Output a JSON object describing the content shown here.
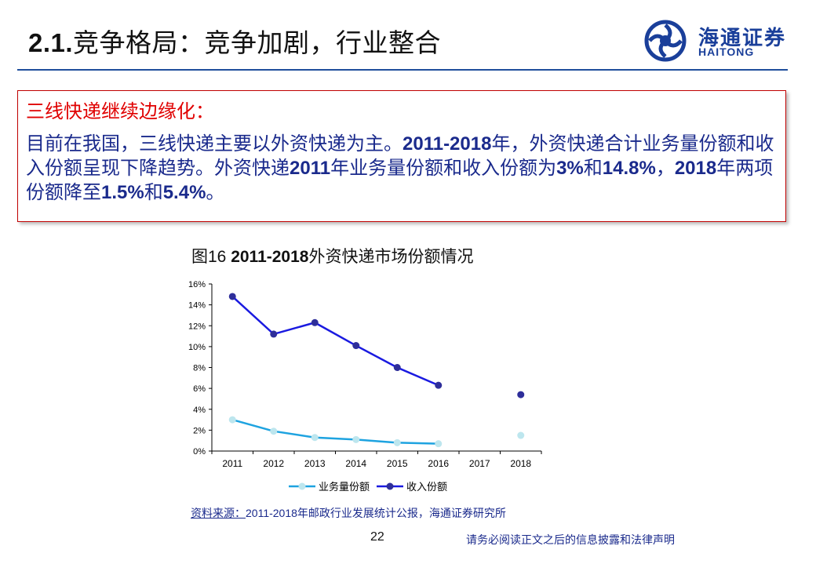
{
  "slide": {
    "title_num": "2.1.",
    "title_text": "竞争格局：竞争加剧，行业整合"
  },
  "logo": {
    "cn": "海通证券",
    "en": "HAITONG"
  },
  "callout": {
    "heading": "三线快递继续边缘化：",
    "body": [
      {
        "t": "目前在我国，三线快递主要以外资快递为主。",
        "b": false
      },
      {
        "t": "2011-2018",
        "b": true
      },
      {
        "t": "年，外资快递合计业务量份额和收入份额呈现下降趋势。外资快递",
        "b": false
      },
      {
        "t": "2011",
        "b": true
      },
      {
        "t": "年业务量份额和收入份额为",
        "b": false
      },
      {
        "t": "3%",
        "b": true
      },
      {
        "t": "和",
        "b": false
      },
      {
        "t": "14.8%",
        "b": true
      },
      {
        "t": "，",
        "b": false
      },
      {
        "t": "2018",
        "b": true
      },
      {
        "t": "年两项份额降至",
        "b": false
      },
      {
        "t": "1.5%",
        "b": true
      },
      {
        "t": "和",
        "b": false
      },
      {
        "t": "5.4%",
        "b": true
      },
      {
        "t": "。",
        "b": false
      }
    ]
  },
  "figure": {
    "label": "图16 ",
    "title_bold": "2011-2018",
    "title_rest": "外资快递市场份额情况"
  },
  "chart_data": {
    "type": "line",
    "categories": [
      "2011",
      "2012",
      "2013",
      "2014",
      "2015",
      "2016",
      "2017",
      "2018"
    ],
    "ylim": [
      0,
      16
    ],
    "yticks": [
      "0%",
      "2%",
      "4%",
      "6%",
      "8%",
      "10%",
      "12%",
      "14%",
      "16%"
    ],
    "series": [
      {
        "name": "业务量份额",
        "color": "#1ea3e0",
        "marker_color": "#bde6ee",
        "values": [
          3.0,
          1.9,
          1.3,
          1.1,
          0.8,
          0.7,
          null,
          1.5
        ]
      },
      {
        "name": "收入份额",
        "color": "#1a1ae0",
        "marker_color": "#2e2e9a",
        "values": [
          14.8,
          11.2,
          12.3,
          10.1,
          8.0,
          6.3,
          null,
          5.4
        ]
      }
    ],
    "legend_position": "bottom",
    "grid": false
  },
  "source": {
    "label": "资料来源：",
    "text": "2011-2018年邮政行业发展统计公报，海通证券研究所"
  },
  "footer": {
    "page": "22",
    "disclaimer": "请务必阅读正文之后的信息披露和法律声明"
  }
}
